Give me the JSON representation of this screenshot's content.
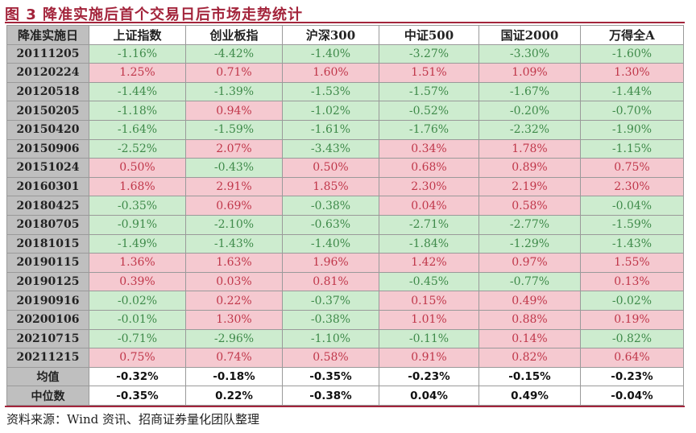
{
  "title": "图 3 降准实施后首个交易日后市场走势统计",
  "colors": {
    "title": "#a3243b",
    "negative_bg": "#cdeccf",
    "positive_bg": "#f5c9d0",
    "negative_text": "#3f8a4a",
    "positive_text": "#c0374a"
  },
  "headers": [
    "降准实施日",
    "上证指数",
    "创业板指",
    "沪深300",
    "中证500",
    "国证2000",
    "万得全A"
  ],
  "rows": [
    [
      "20111205",
      "-1.16%",
      "-4.42%",
      "-1.40%",
      "-3.27%",
      "-3.30%",
      "-1.60%"
    ],
    [
      "20120224",
      "1.25%",
      "0.71%",
      "1.60%",
      "1.51%",
      "1.09%",
      "1.30%"
    ],
    [
      "20120518",
      "-1.44%",
      "-1.39%",
      "-1.53%",
      "-1.57%",
      "-1.67%",
      "-1.44%"
    ],
    [
      "20150205",
      "-1.18%",
      "0.94%",
      "-1.02%",
      "-0.52%",
      "-0.20%",
      "-0.70%"
    ],
    [
      "20150420",
      "-1.64%",
      "-1.59%",
      "-1.61%",
      "-1.76%",
      "-2.32%",
      "-1.90%"
    ],
    [
      "20150906",
      "-2.52%",
      "2.07%",
      "-3.43%",
      "0.34%",
      "1.78%",
      "-1.15%"
    ],
    [
      "20151024",
      "0.50%",
      "-0.43%",
      "0.50%",
      "0.68%",
      "0.89%",
      "0.75%"
    ],
    [
      "20160301",
      "1.68%",
      "2.91%",
      "1.85%",
      "2.30%",
      "2.19%",
      "2.30%"
    ],
    [
      "20180425",
      "-0.35%",
      "0.69%",
      "-0.38%",
      "0.04%",
      "0.58%",
      "-0.04%"
    ],
    [
      "20180705",
      "-0.91%",
      "-2.10%",
      "-0.63%",
      "-2.71%",
      "-2.77%",
      "-1.59%"
    ],
    [
      "20181015",
      "-1.49%",
      "-1.43%",
      "-1.40%",
      "-1.84%",
      "-1.29%",
      "-1.43%"
    ],
    [
      "20190115",
      "1.36%",
      "1.63%",
      "1.96%",
      "1.42%",
      "0.97%",
      "1.55%"
    ],
    [
      "20190125",
      "0.39%",
      "0.03%",
      "0.81%",
      "-0.45%",
      "-0.77%",
      "0.13%"
    ],
    [
      "20190916",
      "-0.02%",
      "0.22%",
      "-0.37%",
      "0.15%",
      "0.49%",
      "-0.02%"
    ],
    [
      "20200106",
      "-0.01%",
      "1.30%",
      "-0.38%",
      "1.01%",
      "0.88%",
      "0.19%"
    ],
    [
      "20210715",
      "-0.71%",
      "-2.96%",
      "-1.10%",
      "-0.11%",
      "0.14%",
      "-0.82%"
    ],
    [
      "20211215",
      "0.75%",
      "0.74%",
      "0.58%",
      "0.91%",
      "0.82%",
      "0.64%"
    ]
  ],
  "summary": [
    [
      "均值",
      "-0.32%",
      "-0.18%",
      "-0.35%",
      "-0.23%",
      "-0.15%",
      "-0.23%"
    ],
    [
      "中位数",
      "-0.35%",
      "0.22%",
      "-0.38%",
      "0.04%",
      "0.49%",
      "-0.04%"
    ]
  ],
  "source": "资料来源：Wind 资讯、招商证券量化团队整理"
}
